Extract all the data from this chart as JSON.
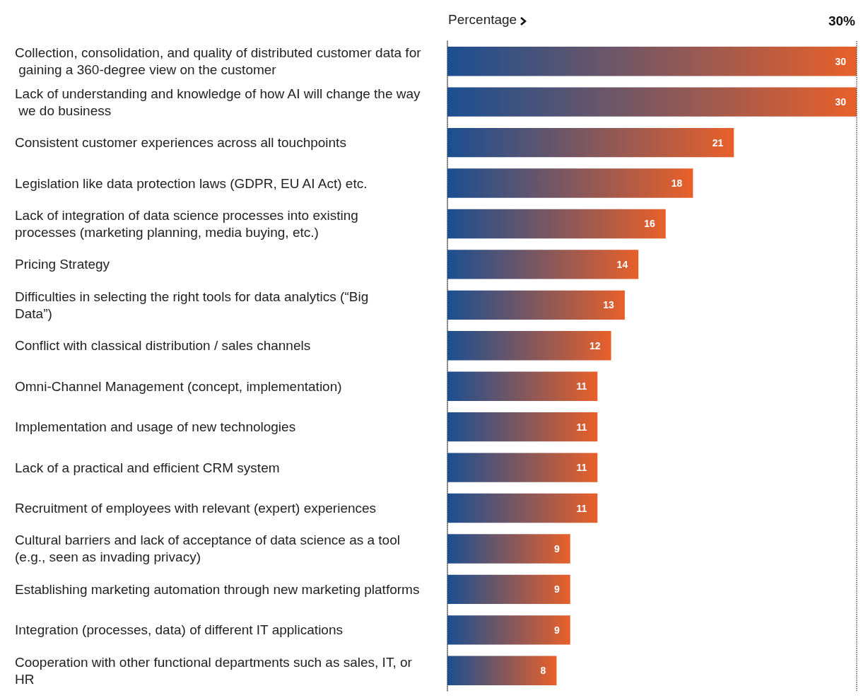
{
  "chart_data": {
    "type": "bar",
    "orientation": "horizontal",
    "xlabel": "Percentage",
    "categories": [
      "Collection, consolidation, and quality of distributed customer data for gaining a 360-degree view on the customer",
      "Lack of understanding and knowledge of how AI will change the way we do business",
      "Consistent customer experiences across all touchpoints",
      "Legislation like data protection laws (GDPR, EU AI Act) etc.",
      "Lack of integration of data science processes into existing processes (marketing planning, media buying, etc.)",
      "Pricing Strategy",
      "Difficulties in selecting the right tools for data analytics (“Big Data”)",
      "Conflict with classical distribution / sales channels",
      "Omni-Channel Management (concept, implementation)",
      "Implementation and usage of new technologies",
      "Lack of a practical and efficient CRM system",
      "Recruitment of employees with relevant (expert) experiences",
      "Cultural barriers and lack of acceptance of data science as a tool (e.g., seen as invading privacy)",
      "Establishing marketing automation through new marketing platforms",
      "Integration (processes, data) of different IT applications",
      "Cooperation with other functional departments such as sales, IT, or HR"
    ],
    "values": [
      30,
      30,
      21,
      18,
      16,
      14,
      13,
      12,
      11,
      11,
      11,
      11,
      9,
      9,
      9,
      8
    ],
    "color": "#e8602a",
    "ref_lines": [
      {
        "axis": "x",
        "value": 30,
        "label": "30%"
      }
    ],
    "data_labels": true
  }
}
